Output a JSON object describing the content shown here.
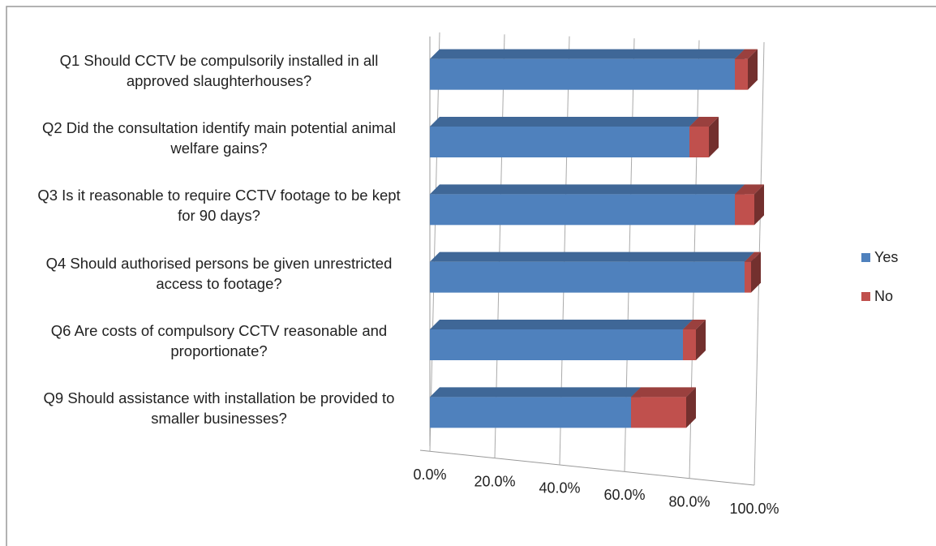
{
  "chart_data": {
    "type": "bar",
    "categories": [
      "Q1 Should CCTV be compulsorily installed in all approved slaughterhouses?",
      "Q2 Did the consultation identify main potential animal welfare gains?",
      "Q3 Is it reasonable to require CCTV footage to be kept for 90 days?",
      "Q4 Should authorised persons be given unrestricted access to footage?",
      "Q6 Are costs of compulsory CCTV reasonable and proportionate?",
      "Q9 Should assistance with installation be provided to smaller businesses?"
    ],
    "series": [
      {
        "name": "Yes",
        "color": "#4f81bd",
        "values": [
          94,
          80,
          94,
          97,
          78,
          62
        ]
      },
      {
        "name": "No",
        "color": "#c0504d",
        "values": [
          4,
          6,
          6,
          2,
          4,
          17
        ]
      }
    ],
    "xlim": [
      0,
      100
    ],
    "xticks": [
      {
        "value": 0,
        "label": "0.0%"
      },
      {
        "value": 20,
        "label": "20.0%"
      },
      {
        "value": 40,
        "label": "40.0%"
      },
      {
        "value": 60,
        "label": "60.0%"
      },
      {
        "value": 80,
        "label": "80.0%"
      },
      {
        "value": 100,
        "label": "100.0%"
      }
    ],
    "grid": true,
    "legend": "right"
  }
}
